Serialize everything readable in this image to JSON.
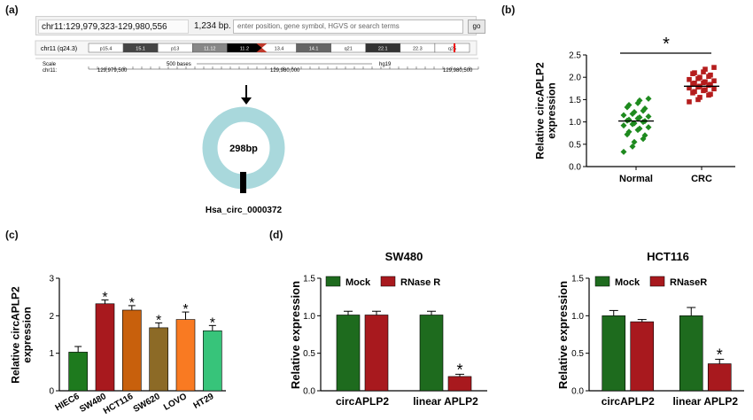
{
  "panels": {
    "a": "(a)",
    "b": "(b)",
    "c": "(c)",
    "d": "(d)"
  },
  "genome_browser": {
    "position": "chr11:129,979,323-129,980,556",
    "size": "1,234 bp.",
    "search_placeholder": "enter position, gene symbol, HGVS or search terms",
    "go_label": "go",
    "chrom_label": "chr11 (q24.3)",
    "bands": [
      "p15.4",
      "15.1",
      "p13",
      "11.12",
      "11.2",
      "13.4",
      "14.1",
      "q21",
      "22.1",
      "22.3",
      "q25"
    ],
    "scale_label": "Scale",
    "chr_label": "chr11:",
    "scale_text": "500 bases",
    "assembly": "hg19",
    "coords": [
      "129,979,500",
      "129,980,000",
      "129,980,500"
    ]
  },
  "circ_diagram": {
    "center_label": "298bp",
    "name": "Hsa_circ_0000372",
    "ring_color": "#a9d8dc"
  },
  "chart_data": [
    {
      "id": "b",
      "type": "scatter",
      "ylabel": "Relative circAPLP2\nexpression",
      "categories": [
        "Normal",
        "CRC"
      ],
      "ylim": [
        0,
        2.5
      ],
      "yticks": [
        "0.0",
        "0.5",
        "1.0",
        "1.5",
        "2.0",
        "2.5"
      ],
      "significance": "*",
      "series": [
        {
          "color": "#1e8a1e",
          "mean": 1.02,
          "values": [
            0.33,
            0.45,
            0.55,
            0.62,
            0.7,
            0.72,
            0.78,
            0.82,
            0.85,
            0.88,
            0.92,
            0.95,
            0.97,
            1.0,
            1.02,
            1.03,
            1.05,
            1.08,
            1.1,
            1.12,
            1.15,
            1.18,
            1.22,
            1.25,
            1.3,
            1.33,
            1.38,
            1.42,
            1.48,
            1.52
          ]
        },
        {
          "color": "#b51d1d",
          "mean": 1.8,
          "values": [
            1.45,
            1.5,
            1.55,
            1.6,
            1.62,
            1.65,
            1.68,
            1.7,
            1.72,
            1.74,
            1.76,
            1.78,
            1.8,
            1.82,
            1.84,
            1.85,
            1.87,
            1.88,
            1.9,
            1.92,
            1.95,
            1.97,
            2.0,
            2.02,
            2.05,
            2.08,
            2.1,
            2.12,
            2.18,
            2.22
          ]
        }
      ]
    },
    {
      "id": "c",
      "type": "bar",
      "ylabel": "Relative circAPLP2\nexpression",
      "categories": [
        "HIEC6",
        "SW480",
        "HCT116",
        "SW620",
        "LOVO",
        "HT29"
      ],
      "values": [
        1.03,
        2.32,
        2.15,
        1.68,
        1.9,
        1.6
      ],
      "errors": [
        0.15,
        0.1,
        0.12,
        0.13,
        0.2,
        0.14
      ],
      "colors": [
        "#1e7a1e",
        "#a8191e",
        "#c8600c",
        "#8c6a26",
        "#f97a22",
        "#37c47a"
      ],
      "significance": [
        "",
        "*",
        "*",
        "*",
        "*",
        "*"
      ],
      "ylim": [
        0,
        3
      ],
      "yticks": [
        "0",
        "1",
        "2",
        "3"
      ]
    },
    {
      "id": "d1",
      "type": "bar",
      "title": "SW480",
      "ylabel": "Relative expression",
      "categories": [
        "circAPLP2",
        "linear APLP2"
      ],
      "series": [
        {
          "name": "Mock",
          "color": "#1e6b1e",
          "values": [
            1.01,
            1.01
          ],
          "errors": [
            0.05,
            0.05
          ]
        },
        {
          "name": "RNase R",
          "color": "#a8191e",
          "values": [
            1.01,
            0.19
          ],
          "errors": [
            0.05,
            0.03
          ]
        }
      ],
      "significance": "*",
      "ylim": [
        0,
        1.5
      ],
      "yticks": [
        "0.0",
        "0.5",
        "1.0",
        "1.5"
      ]
    },
    {
      "id": "d2",
      "type": "bar",
      "title": "HCT116",
      "ylabel": "Relative expression",
      "categories": [
        "circAPLP2",
        "linear APLP2"
      ],
      "series": [
        {
          "name": "Mock",
          "color": "#1e6b1e",
          "values": [
            1.0,
            1.0
          ],
          "errors": [
            0.07,
            0.11
          ]
        },
        {
          "name": "RNaseR",
          "color": "#a8191e",
          "values": [
            0.92,
            0.36
          ],
          "errors": [
            0.03,
            0.06
          ]
        }
      ],
      "significance": "*",
      "ylim": [
        0,
        1.5
      ],
      "yticks": [
        "0.0",
        "0.5",
        "1.0",
        "1.5"
      ]
    }
  ]
}
